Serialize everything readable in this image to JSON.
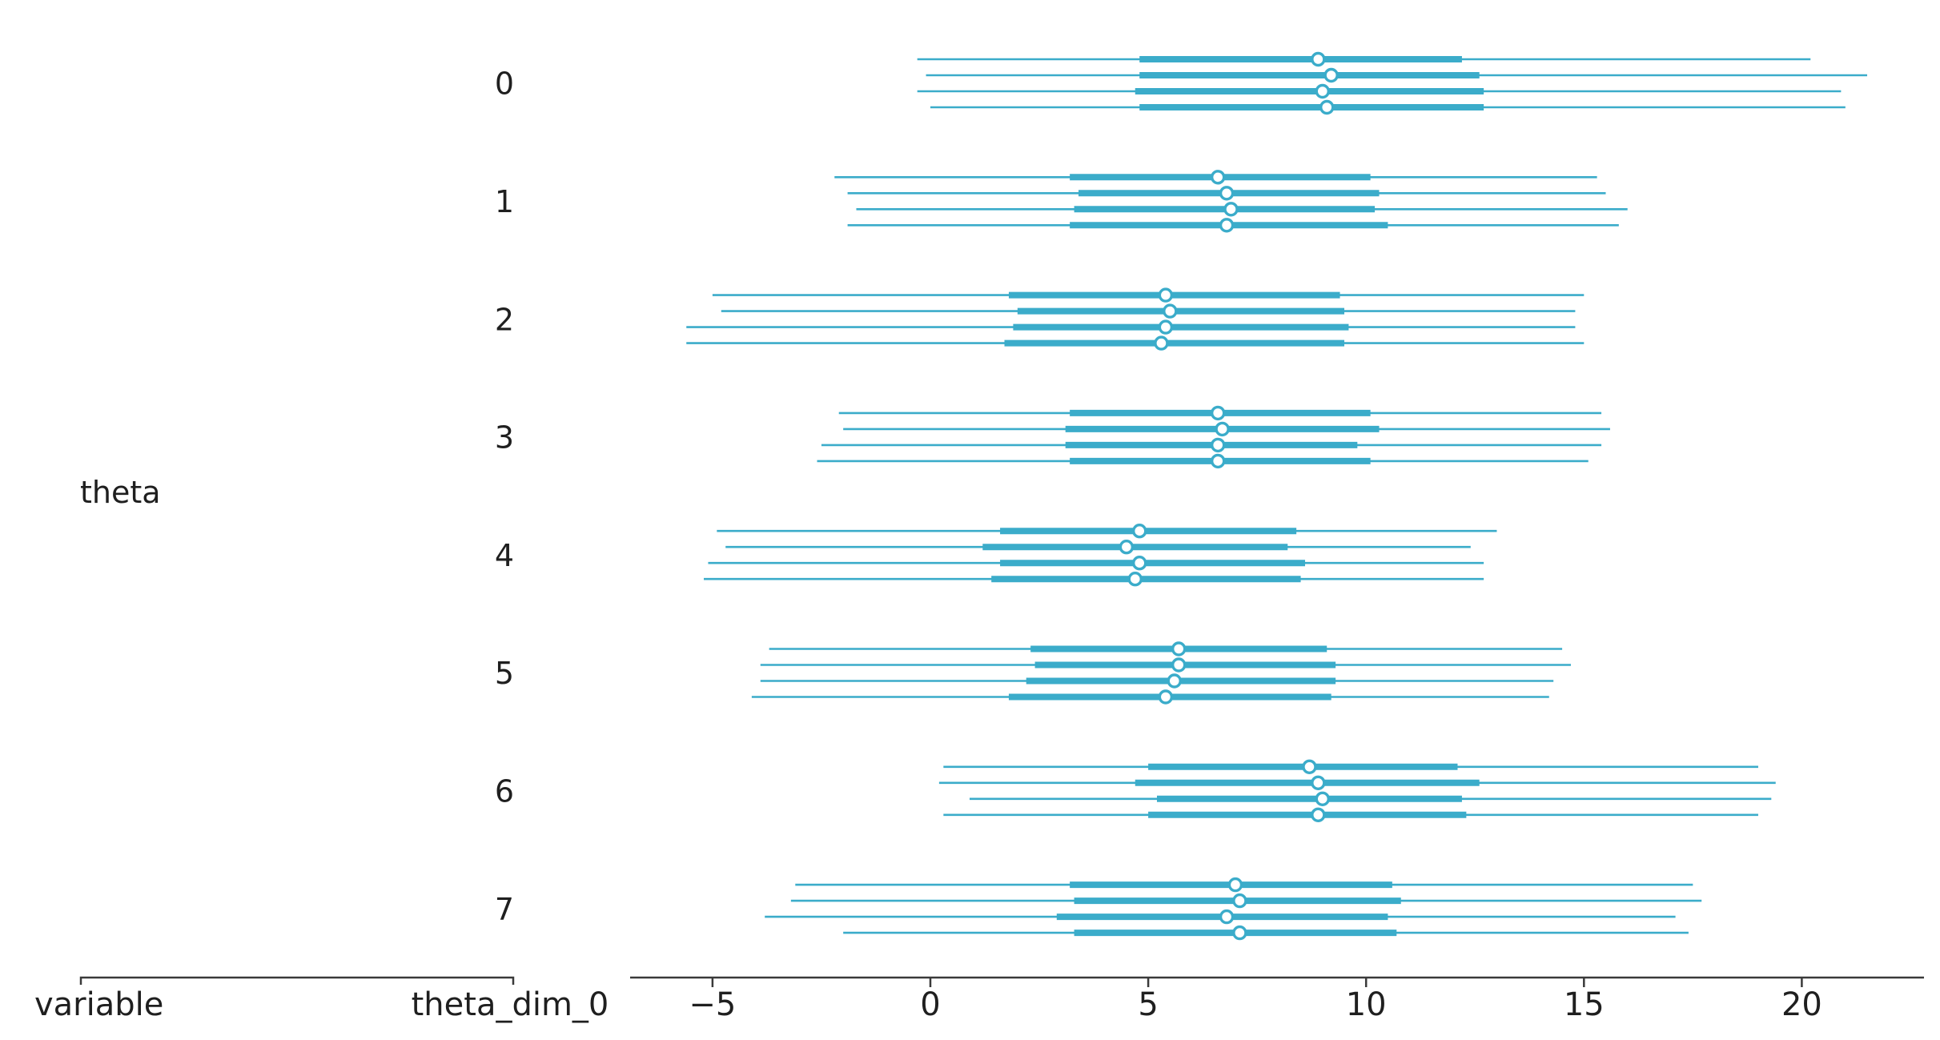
{
  "figure": {
    "background": "#ffffff"
  },
  "labels": {
    "y_variable": "theta",
    "x_axis_left": "variable",
    "x_axis_dim": "theta_dim_0"
  },
  "colors": {
    "interval": "#3bacca",
    "point_fill": "#ffffff",
    "axis": "#3a3a3a",
    "text": "#1f1f1f"
  },
  "chart_data": {
    "type": "forest",
    "title": "",
    "variable": "theta",
    "xlabel_left": "variable",
    "xlabel_right": "theta_dim_0",
    "x_ticks": [
      -5,
      0,
      5,
      10,
      15,
      20
    ],
    "x_range": [
      -6.9,
      22.8
    ],
    "legend": "none",
    "grid": false,
    "rows": [
      {
        "label": "0",
        "chains": [
          {
            "lo": -0.3,
            "q1": 4.8,
            "median": 8.9,
            "q3": 12.2,
            "hi": 20.2
          },
          {
            "lo": -0.1,
            "q1": 4.8,
            "median": 9.2,
            "q3": 12.6,
            "hi": 21.5
          },
          {
            "lo": -0.3,
            "q1": 4.7,
            "median": 9.0,
            "q3": 12.7,
            "hi": 20.9
          },
          {
            "lo": 0.0,
            "q1": 4.8,
            "median": 9.1,
            "q3": 12.7,
            "hi": 21.0
          }
        ]
      },
      {
        "label": "1",
        "chains": [
          {
            "lo": -2.2,
            "q1": 3.2,
            "median": 6.6,
            "q3": 10.1,
            "hi": 15.3
          },
          {
            "lo": -1.9,
            "q1": 3.4,
            "median": 6.8,
            "q3": 10.3,
            "hi": 15.5
          },
          {
            "lo": -1.7,
            "q1": 3.3,
            "median": 6.9,
            "q3": 10.2,
            "hi": 16.0
          },
          {
            "lo": -1.9,
            "q1": 3.2,
            "median": 6.8,
            "q3": 10.5,
            "hi": 15.8
          }
        ]
      },
      {
        "label": "2",
        "chains": [
          {
            "lo": -5.0,
            "q1": 1.8,
            "median": 5.4,
            "q3": 9.4,
            "hi": 15.0
          },
          {
            "lo": -4.8,
            "q1": 2.0,
            "median": 5.5,
            "q3": 9.5,
            "hi": 14.8
          },
          {
            "lo": -5.6,
            "q1": 1.9,
            "median": 5.4,
            "q3": 9.6,
            "hi": 14.8
          },
          {
            "lo": -5.6,
            "q1": 1.7,
            "median": 5.3,
            "q3": 9.5,
            "hi": 15.0
          }
        ]
      },
      {
        "label": "3",
        "chains": [
          {
            "lo": -2.1,
            "q1": 3.2,
            "median": 6.6,
            "q3": 10.1,
            "hi": 15.4
          },
          {
            "lo": -2.0,
            "q1": 3.1,
            "median": 6.7,
            "q3": 10.3,
            "hi": 15.6
          },
          {
            "lo": -2.5,
            "q1": 3.1,
            "median": 6.6,
            "q3": 9.8,
            "hi": 15.4
          },
          {
            "lo": -2.6,
            "q1": 3.2,
            "median": 6.6,
            "q3": 10.1,
            "hi": 15.1
          }
        ]
      },
      {
        "label": "4",
        "chains": [
          {
            "lo": -4.9,
            "q1": 1.6,
            "median": 4.8,
            "q3": 8.4,
            "hi": 13.0
          },
          {
            "lo": -4.7,
            "q1": 1.2,
            "median": 4.5,
            "q3": 8.2,
            "hi": 12.4
          },
          {
            "lo": -5.1,
            "q1": 1.6,
            "median": 4.8,
            "q3": 8.6,
            "hi": 12.7
          },
          {
            "lo": -5.2,
            "q1": 1.4,
            "median": 4.7,
            "q3": 8.5,
            "hi": 12.7
          }
        ]
      },
      {
        "label": "5",
        "chains": [
          {
            "lo": -3.7,
            "q1": 2.3,
            "median": 5.7,
            "q3": 9.1,
            "hi": 14.5
          },
          {
            "lo": -3.9,
            "q1": 2.4,
            "median": 5.7,
            "q3": 9.3,
            "hi": 14.7
          },
          {
            "lo": -3.9,
            "q1": 2.2,
            "median": 5.6,
            "q3": 9.3,
            "hi": 14.3
          },
          {
            "lo": -4.1,
            "q1": 1.8,
            "median": 5.4,
            "q3": 9.2,
            "hi": 14.2
          }
        ]
      },
      {
        "label": "6",
        "chains": [
          {
            "lo": 0.3,
            "q1": 5.0,
            "median": 8.7,
            "q3": 12.1,
            "hi": 19.0
          },
          {
            "lo": 0.2,
            "q1": 4.7,
            "median": 8.9,
            "q3": 12.6,
            "hi": 19.4
          },
          {
            "lo": 0.9,
            "q1": 5.2,
            "median": 9.0,
            "q3": 12.2,
            "hi": 19.3
          },
          {
            "lo": 0.3,
            "q1": 5.0,
            "median": 8.9,
            "q3": 12.3,
            "hi": 19.0
          }
        ]
      },
      {
        "label": "7",
        "chains": [
          {
            "lo": -3.1,
            "q1": 3.2,
            "median": 7.0,
            "q3": 10.6,
            "hi": 17.5
          },
          {
            "lo": -3.2,
            "q1": 3.3,
            "median": 7.1,
            "q3": 10.8,
            "hi": 17.7
          },
          {
            "lo": -3.8,
            "q1": 2.9,
            "median": 6.8,
            "q3": 10.5,
            "hi": 17.1
          },
          {
            "lo": -2.0,
            "q1": 3.3,
            "median": 7.1,
            "q3": 10.7,
            "hi": 17.4
          }
        ]
      }
    ]
  }
}
